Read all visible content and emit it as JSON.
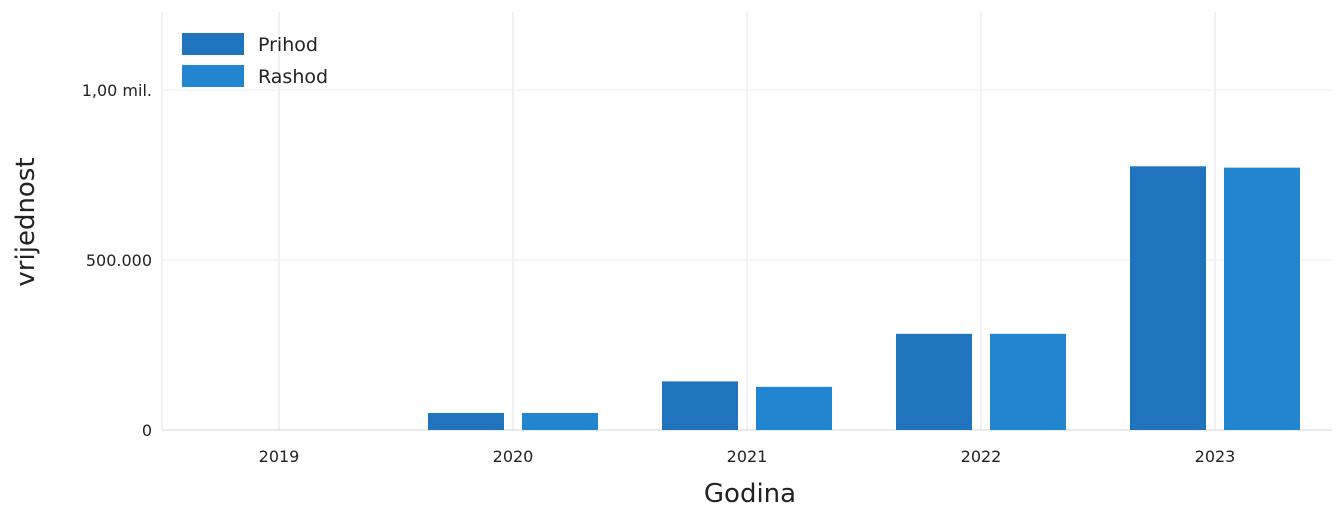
{
  "chart_data": {
    "type": "bar",
    "categories": [
      "2019",
      "2020",
      "2021",
      "2022",
      "2023"
    ],
    "series": [
      {
        "name": "Prihod",
        "values": [
          0,
          50000,
          143000,
          283000,
          776000
        ]
      },
      {
        "name": "Rashod",
        "values": [
          0,
          50000,
          127000,
          283000,
          772000
        ]
      }
    ],
    "xlabel": "Godina",
    "ylabel": "vrijednost",
    "ylim": [
      0,
      1230000
    ],
    "yticks": [
      {
        "value": 0,
        "label": "0"
      },
      {
        "value": 500000,
        "label": "500.000"
      },
      {
        "value": 1000000,
        "label": "1,00 mil."
      }
    ],
    "grid": true,
    "legend_position": "top-left"
  },
  "colors": {
    "series": [
      "#1f74bd",
      "#2285cf"
    ]
  }
}
